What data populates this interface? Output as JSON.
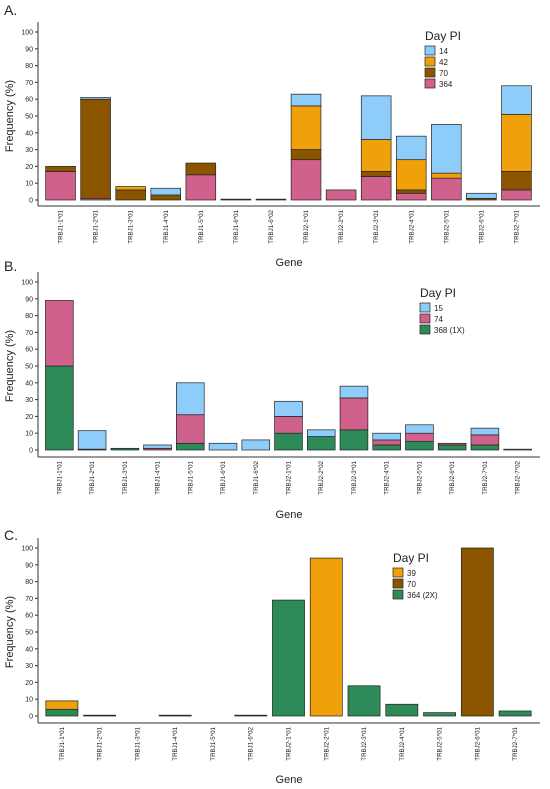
{
  "colors": {
    "c14": "#8ecdfa",
    "c42": "#f0a00a",
    "c70": "#8b5500",
    "c364": "#d0608c",
    "c39": "#f0a00a",
    "green": "#2e8b57"
  },
  "chart_data": [
    {
      "type": "bar",
      "stacked": true,
      "panel_label": "A.",
      "title": "",
      "xlabel": "Gene",
      "ylabel": "Frequency (%)",
      "ylim": [
        0,
        100
      ],
      "yticks": [
        0,
        10,
        20,
        30,
        40,
        50,
        60,
        70,
        80,
        90,
        100
      ],
      "grid": false,
      "legend_title": "Day PI",
      "legend_position": "top-right",
      "categories": [
        "TRBJ1-1*01",
        "TRBJ1-2*01",
        "TRBJ1-3*01",
        "TRBJ1-4*01",
        "TRBJ1-5*01",
        "TRBJ1-6*01",
        "TRBJ1-6*02",
        "TRBJ2-1*01",
        "TRBJ2-2*01",
        "TRBJ2-3*01",
        "TRBJ2-4*01",
        "TRBJ2-5*01",
        "TRBJ2-6*01",
        "TRBJ2-7*01"
      ],
      "series": [
        {
          "name": "364",
          "color_key": "c364",
          "values": [
            17,
            1,
            0,
            0,
            15,
            0,
            0,
            24,
            6,
            14,
            4,
            13,
            0,
            6
          ]
        },
        {
          "name": "70",
          "color_key": "c70",
          "values": [
            3,
            59,
            6,
            3,
            7,
            0.5,
            0.5,
            6,
            0,
            3,
            2,
            0,
            1,
            11
          ]
        },
        {
          "name": "42",
          "color_key": "c42",
          "values": [
            0,
            0,
            2,
            0,
            0,
            0,
            0,
            26,
            0,
            19,
            18,
            3,
            0,
            34
          ]
        },
        {
          "name": "14",
          "color_key": "c14",
          "values": [
            0,
            1,
            0,
            4,
            0,
            0,
            0,
            7,
            0,
            26,
            14,
            29,
            3,
            17
          ]
        }
      ],
      "legend_order": [
        "14",
        "42",
        "70",
        "364"
      ]
    },
    {
      "type": "bar",
      "stacked": true,
      "panel_label": "B.",
      "title": "",
      "xlabel": "Gene",
      "ylabel": "Frequency (%)",
      "ylim": [
        0,
        100
      ],
      "yticks": [
        0,
        10,
        20,
        30,
        40,
        50,
        60,
        70,
        80,
        90,
        100
      ],
      "grid": false,
      "legend_title": "Day PI",
      "legend_position": "top-right",
      "categories": [
        "TRBJ1-1*01",
        "TRBJ1-2*01",
        "TRBJ1-3*01",
        "TRBJ1-4*01",
        "TRBJ1-5*01",
        "TRBJ1-6*01",
        "TRBJ1-6*02",
        "TRBJ2-1*01",
        "TRBJ2-2*02",
        "TRBJ2-3*01",
        "TRBJ2-4*01",
        "TRBJ2-5*01",
        "TRBJ2-6*01",
        "TRBJ2-7*01",
        "TRBJ2-7*02"
      ],
      "series": [
        {
          "name": "368 (1X)",
          "color_key": "green",
          "values": [
            50,
            0,
            1,
            0,
            4,
            0,
            0,
            10,
            8,
            12,
            3,
            5,
            3,
            3,
            0
          ]
        },
        {
          "name": "74",
          "color_key": "c364",
          "values": [
            39,
            0.5,
            0,
            1,
            17,
            0,
            0,
            10,
            0,
            19,
            3,
            5,
            1,
            6,
            0
          ]
        },
        {
          "name": "15",
          "color_key": "c14",
          "values": [
            0,
            11,
            0,
            2,
            19,
            4,
            6,
            9,
            4,
            7,
            4,
            5,
            0,
            4,
            0.5
          ]
        }
      ],
      "legend_order": [
        "15",
        "74",
        "368 (1X)"
      ]
    },
    {
      "type": "bar",
      "stacked": true,
      "panel_label": "C.",
      "title": "",
      "xlabel": "Gene",
      "ylabel": "Frequency (%)",
      "ylim": [
        0,
        100
      ],
      "yticks": [
        0,
        10,
        20,
        30,
        40,
        50,
        60,
        70,
        80,
        90,
        100
      ],
      "grid": false,
      "legend_title": "Day PI",
      "legend_position": "top-right",
      "categories": [
        "TRBJ1-1*01",
        "TRBJ1-2*01",
        "TRBJ1-3*01",
        "TRBJ1-4*01",
        "TRBJ1-5*01",
        "TRBJ1-6*02",
        "TRBJ2-1*01",
        "TRBJ2-2*01",
        "TRBJ2-3*01",
        "TRBJ2-4*01",
        "TRBJ2-5*01",
        "TRBJ2-6*01",
        "TRBJ2-7*01"
      ],
      "series": [
        {
          "name": "364 (2X)",
          "color_key": "green",
          "values": [
            4,
            0.5,
            0,
            0.5,
            0,
            0.5,
            69,
            0,
            18,
            7,
            2,
            0,
            3
          ]
        },
        {
          "name": "70",
          "color_key": "c70",
          "values": [
            0,
            0,
            0,
            0,
            0,
            0,
            0,
            0,
            0,
            0,
            0,
            100,
            0
          ]
        },
        {
          "name": "39",
          "color_key": "c39",
          "values": [
            5,
            0,
            0,
            0,
            0,
            0,
            0,
            94,
            0,
            0,
            0,
            0,
            0
          ]
        }
      ],
      "legend_order": [
        "39",
        "70",
        "364 (2X)"
      ]
    }
  ]
}
